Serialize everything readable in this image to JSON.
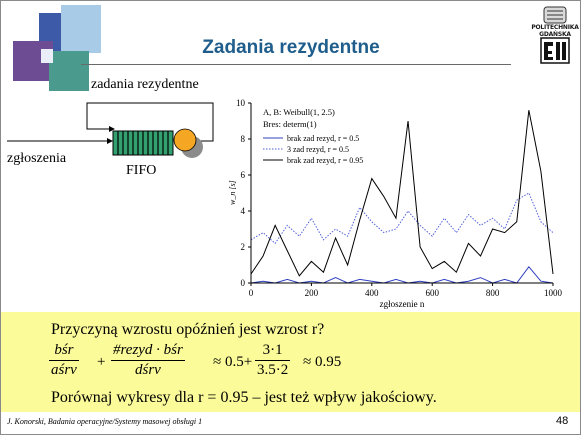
{
  "slide": {
    "title": "Zadania rezydentne",
    "logo_text": [
      "POLITECHNIKA",
      "GDAŃSKA"
    ],
    "footer": "J. Konorski, Badania operacyjne/Systemy masowej obsługi 1",
    "page_number": "48"
  },
  "diagram": {
    "feedback_label": "zadania rezydentne",
    "input_label": "zgłoszenia",
    "queue_label": "FIFO"
  },
  "chart_data": {
    "type": "line",
    "ylabel": "w_n [s]",
    "xlabel": "zgłoszenie n",
    "xlim": [
      0,
      1000
    ],
    "ylim": [
      0,
      10
    ],
    "xticks": [
      "0",
      "200",
      "400",
      "600",
      "800",
      "1000"
    ],
    "yticks": [
      "0",
      "2",
      "4",
      "6",
      "8",
      "10"
    ],
    "annotations": [
      "A, B: Weibull(1, 2.5)",
      "Bres: determ(1)"
    ],
    "series": [
      {
        "name": "brak zad rezyd, r = 0.5",
        "color": "#3040c0",
        "style": "solid",
        "x": [
          0,
          40,
          80,
          120,
          160,
          200,
          240,
          280,
          320,
          360,
          400,
          440,
          480,
          520,
          560,
          600,
          640,
          680,
          720,
          760,
          800,
          840,
          880,
          920,
          960,
          1000
        ],
        "y": [
          0,
          0.1,
          0,
          0.2,
          0,
          0.1,
          0,
          0.3,
          0,
          0.2,
          0.1,
          0,
          0.2,
          0,
          0.1,
          0,
          0.2,
          0,
          0.1,
          0.3,
          0,
          0.2,
          0,
          0.9,
          0.1,
          0
        ]
      },
      {
        "name": "3 zad rezyd, r = 0.5",
        "color": "#5060d8",
        "style": "dotted",
        "x": [
          0,
          40,
          80,
          120,
          160,
          200,
          240,
          280,
          320,
          360,
          400,
          440,
          480,
          520,
          560,
          600,
          640,
          680,
          720,
          760,
          800,
          840,
          880,
          920,
          960,
          1000
        ],
        "y": [
          2.4,
          2.8,
          2.2,
          3.2,
          2.6,
          3.6,
          2.4,
          3.0,
          2.6,
          4.2,
          3.4,
          2.8,
          3.0,
          4.0,
          3.2,
          2.6,
          3.6,
          2.8,
          3.8,
          3.2,
          3.6,
          3.0,
          4.6,
          5.0,
          3.4,
          2.8
        ]
      },
      {
        "name": "brak zad rezyd, r = 0.95",
        "color": "#000000",
        "style": "solid",
        "x": [
          0,
          40,
          80,
          120,
          160,
          200,
          240,
          280,
          320,
          360,
          400,
          440,
          480,
          520,
          560,
          600,
          640,
          680,
          720,
          760,
          800,
          840,
          880,
          920,
          960,
          1000
        ],
        "y": [
          0.5,
          1.5,
          3.2,
          1.8,
          0.4,
          1.2,
          0.6,
          2.5,
          1.0,
          3.5,
          5.8,
          4.8,
          3.6,
          9.0,
          2.0,
          0.8,
          1.2,
          0.6,
          2.2,
          1.5,
          3.0,
          2.8,
          3.4,
          9.6,
          6.2,
          0.5
        ]
      }
    ]
  },
  "bottom": {
    "line1": "Przyczyną wzrostu opóźnień jest wzrost r?",
    "formula": {
      "f1_num": "bśr",
      "f1_den": "aśrv",
      "plus": "+",
      "f2_num": "#rezyd · bśr",
      "f2_den": "dśrv",
      "approx1": "≈ 0.5+",
      "f3_num": "3·1",
      "f3_den": "3.5·2",
      "approx2": "≈ 0.95"
    },
    "line3": "Porównaj wykresy dla r = 0.95 – jest też wpływ jakościowy."
  }
}
